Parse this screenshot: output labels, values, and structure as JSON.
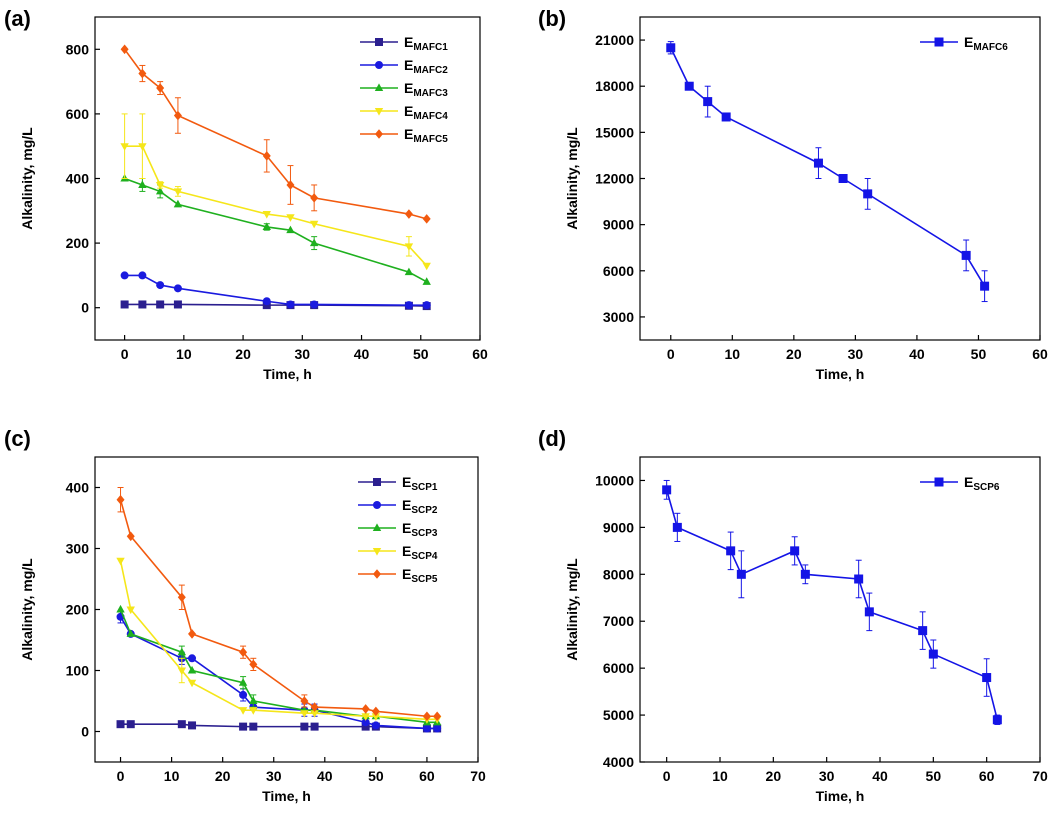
{
  "chart_data": [
    {
      "panel": "(a)",
      "type": "line",
      "xlabel": "Time, h",
      "ylabel": "Alkalinity, mg/L",
      "xlim": [
        -5,
        60
      ],
      "ylim": [
        -100,
        900
      ],
      "xticks": [
        0,
        10,
        20,
        30,
        40,
        50,
        60
      ],
      "yticks": [
        0,
        200,
        400,
        600,
        800
      ],
      "legend_position": "top-right",
      "series": [
        {
          "name": "E",
          "sub": "MAFC1",
          "color": "#2b1f8f",
          "marker": "square",
          "x": [
            0,
            3,
            6,
            9,
            24,
            28,
            32,
            48,
            51
          ],
          "y": [
            10,
            10,
            10,
            10,
            8,
            8,
            8,
            6,
            5
          ],
          "err": [
            0,
            0,
            0,
            0,
            0,
            0,
            0,
            0,
            0
          ]
        },
        {
          "name": "E",
          "sub": "MAFC2",
          "color": "#1a1adf",
          "marker": "circle",
          "x": [
            0,
            3,
            6,
            9,
            24,
            28,
            32,
            48,
            51
          ],
          "y": [
            100,
            100,
            70,
            60,
            20,
            10,
            10,
            8,
            8
          ],
          "err": [
            0,
            0,
            0,
            0,
            0,
            0,
            0,
            0,
            0
          ]
        },
        {
          "name": "E",
          "sub": "MAFC3",
          "color": "#1fb01f",
          "marker": "triangle-up",
          "x": [
            0,
            3,
            6,
            9,
            24,
            28,
            32,
            48,
            51
          ],
          "y": [
            400,
            380,
            360,
            320,
            250,
            240,
            200,
            110,
            80
          ],
          "err": [
            0,
            20,
            20,
            0,
            10,
            0,
            20,
            0,
            0
          ]
        },
        {
          "name": "E",
          "sub": "MAFC4",
          "color": "#f5e61a",
          "marker": "triangle-down",
          "x": [
            0,
            3,
            6,
            9,
            24,
            28,
            32,
            48,
            51
          ],
          "y": [
            500,
            500,
            380,
            360,
            290,
            280,
            260,
            190,
            130
          ],
          "err": [
            100,
            100,
            10,
            15,
            0,
            0,
            0,
            30,
            0
          ]
        },
        {
          "name": "E",
          "sub": "MAFC5",
          "color": "#f25a0f",
          "marker": "diamond",
          "x": [
            0,
            3,
            6,
            9,
            24,
            28,
            32,
            48,
            51
          ],
          "y": [
            800,
            725,
            680,
            595,
            470,
            380,
            340,
            290,
            275
          ],
          "err": [
            0,
            25,
            20,
            55,
            50,
            60,
            40,
            0,
            0
          ]
        }
      ]
    },
    {
      "panel": "(b)",
      "type": "line",
      "xlabel": "Time, h",
      "ylabel": "Alkalinity, mg/L",
      "xlim": [
        -5,
        60
      ],
      "ylim": [
        1500,
        22500
      ],
      "xticks": [
        0,
        10,
        20,
        30,
        40,
        50,
        60
      ],
      "yticks": [
        3000,
        6000,
        9000,
        12000,
        15000,
        18000,
        21000
      ],
      "legend_position": "top-right",
      "series": [
        {
          "name": "E",
          "sub": "MAFC6",
          "color": "#1414e6",
          "marker": "square",
          "x": [
            0,
            3,
            6,
            9,
            24,
            28,
            32,
            48,
            51
          ],
          "y": [
            20500,
            18000,
            17000,
            16000,
            13000,
            12000,
            11000,
            7000,
            5000
          ],
          "err": [
            400,
            0,
            1000,
            0,
            1000,
            0,
            1000,
            1000,
            1000
          ]
        }
      ]
    },
    {
      "panel": "(c)",
      "type": "line",
      "xlabel": "Time, h",
      "ylabel": "Alkalinity, mg/L",
      "xlim": [
        -5,
        70
      ],
      "ylim": [
        -50,
        450
      ],
      "xticks": [
        0,
        10,
        20,
        30,
        40,
        50,
        60,
        70
      ],
      "yticks": [
        0,
        100,
        200,
        300,
        400
      ],
      "legend_position": "top-right",
      "series": [
        {
          "name": "E",
          "sub": "SCP1",
          "color": "#2b1f8f",
          "marker": "square",
          "x": [
            0,
            2,
            12,
            14,
            24,
            26,
            36,
            38,
            48,
            50,
            60,
            62
          ],
          "y": [
            12,
            12,
            12,
            10,
            8,
            8,
            8,
            8,
            8,
            8,
            5,
            5
          ],
          "err": [
            0,
            0,
            0,
            0,
            0,
            0,
            0,
            0,
            0,
            0,
            0,
            0
          ]
        },
        {
          "name": "E",
          "sub": "SCP2",
          "color": "#1a1adf",
          "marker": "circle",
          "x": [
            0,
            2,
            12,
            14,
            24,
            26,
            36,
            38,
            48,
            50,
            60,
            62
          ],
          "y": [
            188,
            160,
            120,
            120,
            60,
            40,
            35,
            35,
            15,
            10,
            5,
            5
          ],
          "err": [
            10,
            0,
            10,
            0,
            10,
            0,
            10,
            10,
            0,
            0,
            0,
            0
          ]
        },
        {
          "name": "E",
          "sub": "SCP3",
          "color": "#1fb01f",
          "marker": "triangle-up",
          "x": [
            0,
            2,
            12,
            14,
            24,
            26,
            36,
            38,
            48,
            50,
            60,
            62
          ],
          "y": [
            200,
            160,
            130,
            100,
            80,
            50,
            35,
            35,
            25,
            25,
            15,
            15
          ],
          "err": [
            0,
            0,
            10,
            0,
            10,
            10,
            0,
            0,
            0,
            0,
            0,
            0
          ]
        },
        {
          "name": "E",
          "sub": "SCP4",
          "color": "#f5e61a",
          "marker": "triangle-down",
          "x": [
            0,
            2,
            12,
            14,
            24,
            26,
            36,
            38,
            48,
            50,
            60,
            62
          ],
          "y": [
            280,
            200,
            100,
            80,
            35,
            35,
            30,
            30,
            25,
            25,
            20,
            20
          ],
          "err": [
            0,
            0,
            20,
            0,
            0,
            0,
            0,
            0,
            0,
            0,
            0,
            0
          ]
        },
        {
          "name": "E",
          "sub": "SCP5",
          "color": "#f25a0f",
          "marker": "diamond",
          "x": [
            0,
            2,
            12,
            14,
            24,
            26,
            36,
            38,
            48,
            50,
            60,
            62
          ],
          "y": [
            380,
            320,
            220,
            160,
            130,
            110,
            50,
            40,
            37,
            33,
            25,
            25
          ],
          "err": [
            20,
            0,
            20,
            0,
            10,
            10,
            10,
            0,
            0,
            0,
            0,
            0
          ]
        }
      ]
    },
    {
      "panel": "(d)",
      "type": "line",
      "xlabel": "Time, h",
      "ylabel": "Alkalinity, mg/L",
      "xlim": [
        -5,
        70
      ],
      "ylim": [
        4000,
        10500
      ],
      "xticks": [
        0,
        10,
        20,
        30,
        40,
        50,
        60,
        70
      ],
      "yticks": [
        4000,
        5000,
        6000,
        7000,
        8000,
        9000,
        10000
      ],
      "legend_position": "top-right",
      "series": [
        {
          "name": "E",
          "sub": "SCP6",
          "color": "#1414e6",
          "marker": "square",
          "x": [
            0,
            2,
            12,
            14,
            24,
            26,
            36,
            38,
            48,
            50,
            60,
            62
          ],
          "y": [
            9800,
            9000,
            8500,
            8000,
            8500,
            8000,
            7900,
            7200,
            6800,
            6300,
            5800,
            4900
          ],
          "err": [
            200,
            300,
            400,
            500,
            300,
            200,
            400,
            400,
            400,
            300,
            400,
            100
          ]
        }
      ]
    }
  ]
}
